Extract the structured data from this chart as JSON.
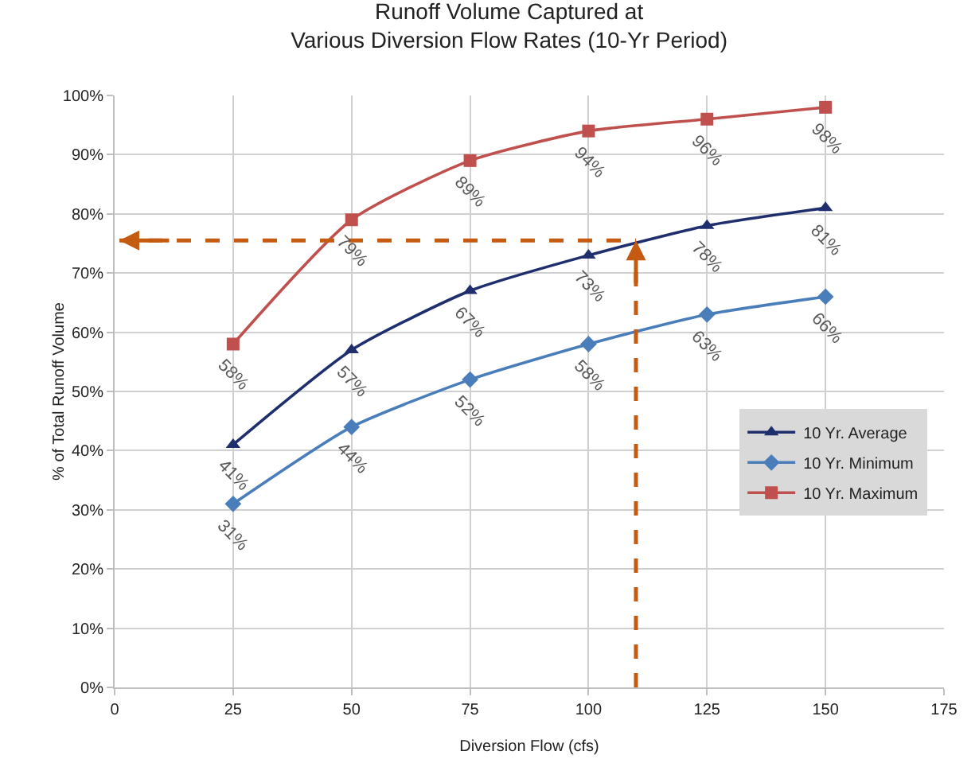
{
  "chart_data": {
    "type": "line",
    "title": "Runoff Volume Captured at\nVarious Diversion Flow Rates (10-Yr Period)",
    "xlabel": "Diversion Flow (cfs)",
    "ylabel": "% of Total Runoff Volume",
    "x": [
      25,
      50,
      75,
      100,
      125,
      150
    ],
    "series": [
      {
        "name": "10 Yr. Average",
        "color": "#1f2f6e",
        "marker": "triangle",
        "values": [
          41,
          57,
          67,
          73,
          78,
          81
        ],
        "value_labels": [
          "41%",
          "57%",
          "67%",
          "73%",
          "78%",
          "81%"
        ]
      },
      {
        "name": "10 Yr. Minimum",
        "color": "#4a7ebb",
        "marker": "diamond",
        "values": [
          31,
          44,
          52,
          58,
          63,
          66
        ],
        "value_labels": [
          "31%",
          "44%",
          "52%",
          "58%",
          "63%",
          "66%"
        ]
      },
      {
        "name": "10 Yr. Maximum",
        "color": "#c0504d",
        "marker": "square",
        "values": [
          58,
          79,
          89,
          94,
          96,
          98
        ],
        "value_labels": [
          "58%",
          "79%",
          "89%",
          "94%",
          "96%",
          "98%"
        ]
      }
    ],
    "xlim": [
      0,
      175
    ],
    "xticks": [
      0,
      25,
      50,
      75,
      100,
      125,
      150,
      175
    ],
    "ylim": [
      0,
      100
    ],
    "yticks": [
      {
        "value": 0,
        "label": "0%"
      },
      {
        "value": 10,
        "label": "10%"
      },
      {
        "value": 20,
        "label": "20%"
      },
      {
        "value": 30,
        "label": "30%"
      },
      {
        "value": 40,
        "label": "40%"
      },
      {
        "value": 50,
        "label": "50%"
      },
      {
        "value": 60,
        "label": "60%"
      },
      {
        "value": 70,
        "label": "70%"
      },
      {
        "value": 80,
        "label": "80%"
      },
      {
        "value": 90,
        "label": "90%"
      },
      {
        "value": 100,
        "label": "100%"
      }
    ],
    "ref_lines": [
      {
        "axis": "x",
        "value": 110,
        "color": "#c55a11",
        "line_style": "dashed"
      },
      {
        "axis": "y",
        "value": 75.5,
        "color": "#c55a11",
        "line_style": "dashed"
      }
    ],
    "grid": true,
    "legend": "right",
    "line_style": "solid"
  }
}
